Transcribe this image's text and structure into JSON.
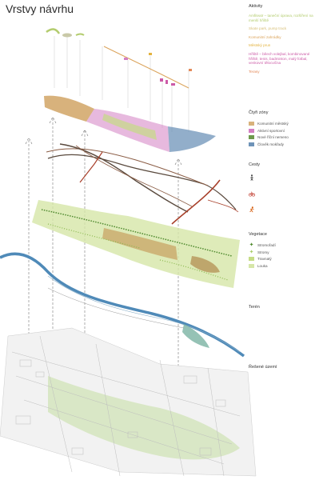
{
  "title": "Vrstvy návrhu",
  "legend": {
    "activities": {
      "heading": "Aktivity",
      "items": [
        {
          "text": "Amfiteatr – taneční úprava, rozšíření na menší hřiště",
          "color": "#b3cc6e"
        },
        {
          "text": "Skate park, pump track",
          "color": "#d8c07a"
        },
        {
          "text": "Komunitní zahrádky",
          "color": "#dba45c"
        },
        {
          "text": "Městský prun",
          "color": "#e3b33f"
        },
        {
          "text": "Hřiště – běech volejbal, kombinované hřiště, tenis, badminton, malý fotbal, venkovní tělocvična",
          "color": "#cc5aa6"
        },
        {
          "text": "Terasy",
          "color": "#e38a5a"
        }
      ]
    },
    "zones": {
      "heading": "Čtyři zóny",
      "items": [
        {
          "text": "Komunitní městský",
          "color": "#d8b27c"
        },
        {
          "text": "Aktivní sportovní",
          "color": "#d47fc3"
        },
        {
          "text": "Nové říční nemeno",
          "color": "#6e9a4c"
        },
        {
          "text": "Člověk mokřady",
          "color": "#6e93b8"
        }
      ]
    },
    "roads": {
      "heading": "Cesty",
      "items": [
        {
          "icon": "pedestrian-icon"
        },
        {
          "icon": "bicycle-icon"
        },
        {
          "icon": "runner-icon"
        }
      ]
    },
    "vegetation": {
      "heading": "Vegetace",
      "items": [
        {
          "text": "Stromořadí",
          "color": "#4f8a2e"
        },
        {
          "text": "Stromy",
          "color": "#a9cd6a"
        },
        {
          "text": "Travnatý",
          "color": "#c5dc85"
        },
        {
          "text": "Louka",
          "color": "#d6e6a8"
        }
      ]
    },
    "terrain": {
      "heading": "Terén"
    },
    "area": {
      "heading": "Řešené území"
    }
  },
  "colors": {
    "river": "#4f8ab8",
    "park": "#cfe2b4",
    "road_dark": "#5a4a3e",
    "road_red": "#a8402b",
    "road_brown": "#8a5c44"
  }
}
